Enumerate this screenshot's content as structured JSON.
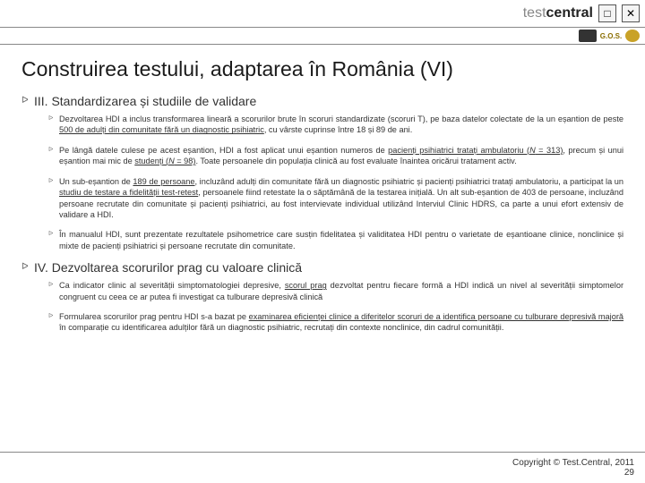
{
  "header": {
    "brand_light": "test",
    "brand_dark": "central",
    "close_glyph": "✕",
    "box_glyph": "□",
    "sub_logo2": "G.O.S."
  },
  "title": "Construirea testului, adaptarea în România (VI)",
  "section3": {
    "heading": "III. Standardizarea și studiile de validare",
    "items": [
      "Dezvoltarea HDI a inclus transformarea lineară a scorurilor brute în scoruri standardizate (scoruri T), pe baza datelor colectate de la un eșantion de peste <span class='u'>500 de adulți din comunitate fără un diagnostic psihiatric</span>, cu vârste cuprinse între 18 și 89 de ani.",
      "Pe lângă datele culese pe acest eșantion, HDI a fost aplicat unui eșantion numeros de <span class='u'>pacienți psihiatrici tratați ambulatoriu (<span class='i'>N</span> = 313)</span>, precum și unui eșantion mai mic de <span class='u'>studenți (<span class='i'>N</span> = 98)</span>. Toate persoanele din populația clinică au fost evaluate înaintea oricărui tratament activ.",
      "Un sub-eșantion de <span class='u'>189 de persoane</span>, incluzând adulți din comunitate fără un diagnostic psihiatric și pacienți psihiatrici tratați ambulatoriu, a participat la un <span class='u'>studiu de testare a fidelității test-retest</span>, persoanele fiind retestate la o săptămână de la testarea inițială. Un alt sub-eșantion de 403 de persoane, incluzând persoane recrutate din comunitate și pacienți psihiatrici, au fost intervievate individual utilizând Interviul Clinic HDRS, ca parte a unui efort extensiv de validare a HDI.",
      "În manualul HDI, sunt prezentate rezultatele psihometrice care susțin fidelitatea și validitatea HDI pentru o varietate de eșantioane clinice, nonclinice și mixte de pacienți psihiatrici și persoane recrutate din comunitate."
    ]
  },
  "section4": {
    "heading": "IV. Dezvoltarea scorurilor prag cu valoare clinică",
    "items": [
      "Ca indicator clinic al severității simptomatologiei depresive, <span class='u'>scorul prag</span> dezvoltat pentru fiecare formă a HDI indică un nivel al severității simptomelor congruent cu ceea ce ar putea fi investigat ca tulburare depresivă clinică",
      "Formularea scorurilor prag pentru HDI s-a bazat pe <span class='u'>examinarea eficienței clinice a diferitelor scoruri de a identifica persoane cu tulburare depresivă majoră</span> în comparație cu identificarea adulților fără un diagnostic psihiatric, recrutați din contexte nonclinice, din cadrul comunității."
    ]
  },
  "footer": {
    "copyright": "Copyright © Test.Central, 2011",
    "page": "29"
  },
  "colors": {
    "text": "#333333",
    "rule": "#888888",
    "bg": "#ffffff"
  }
}
